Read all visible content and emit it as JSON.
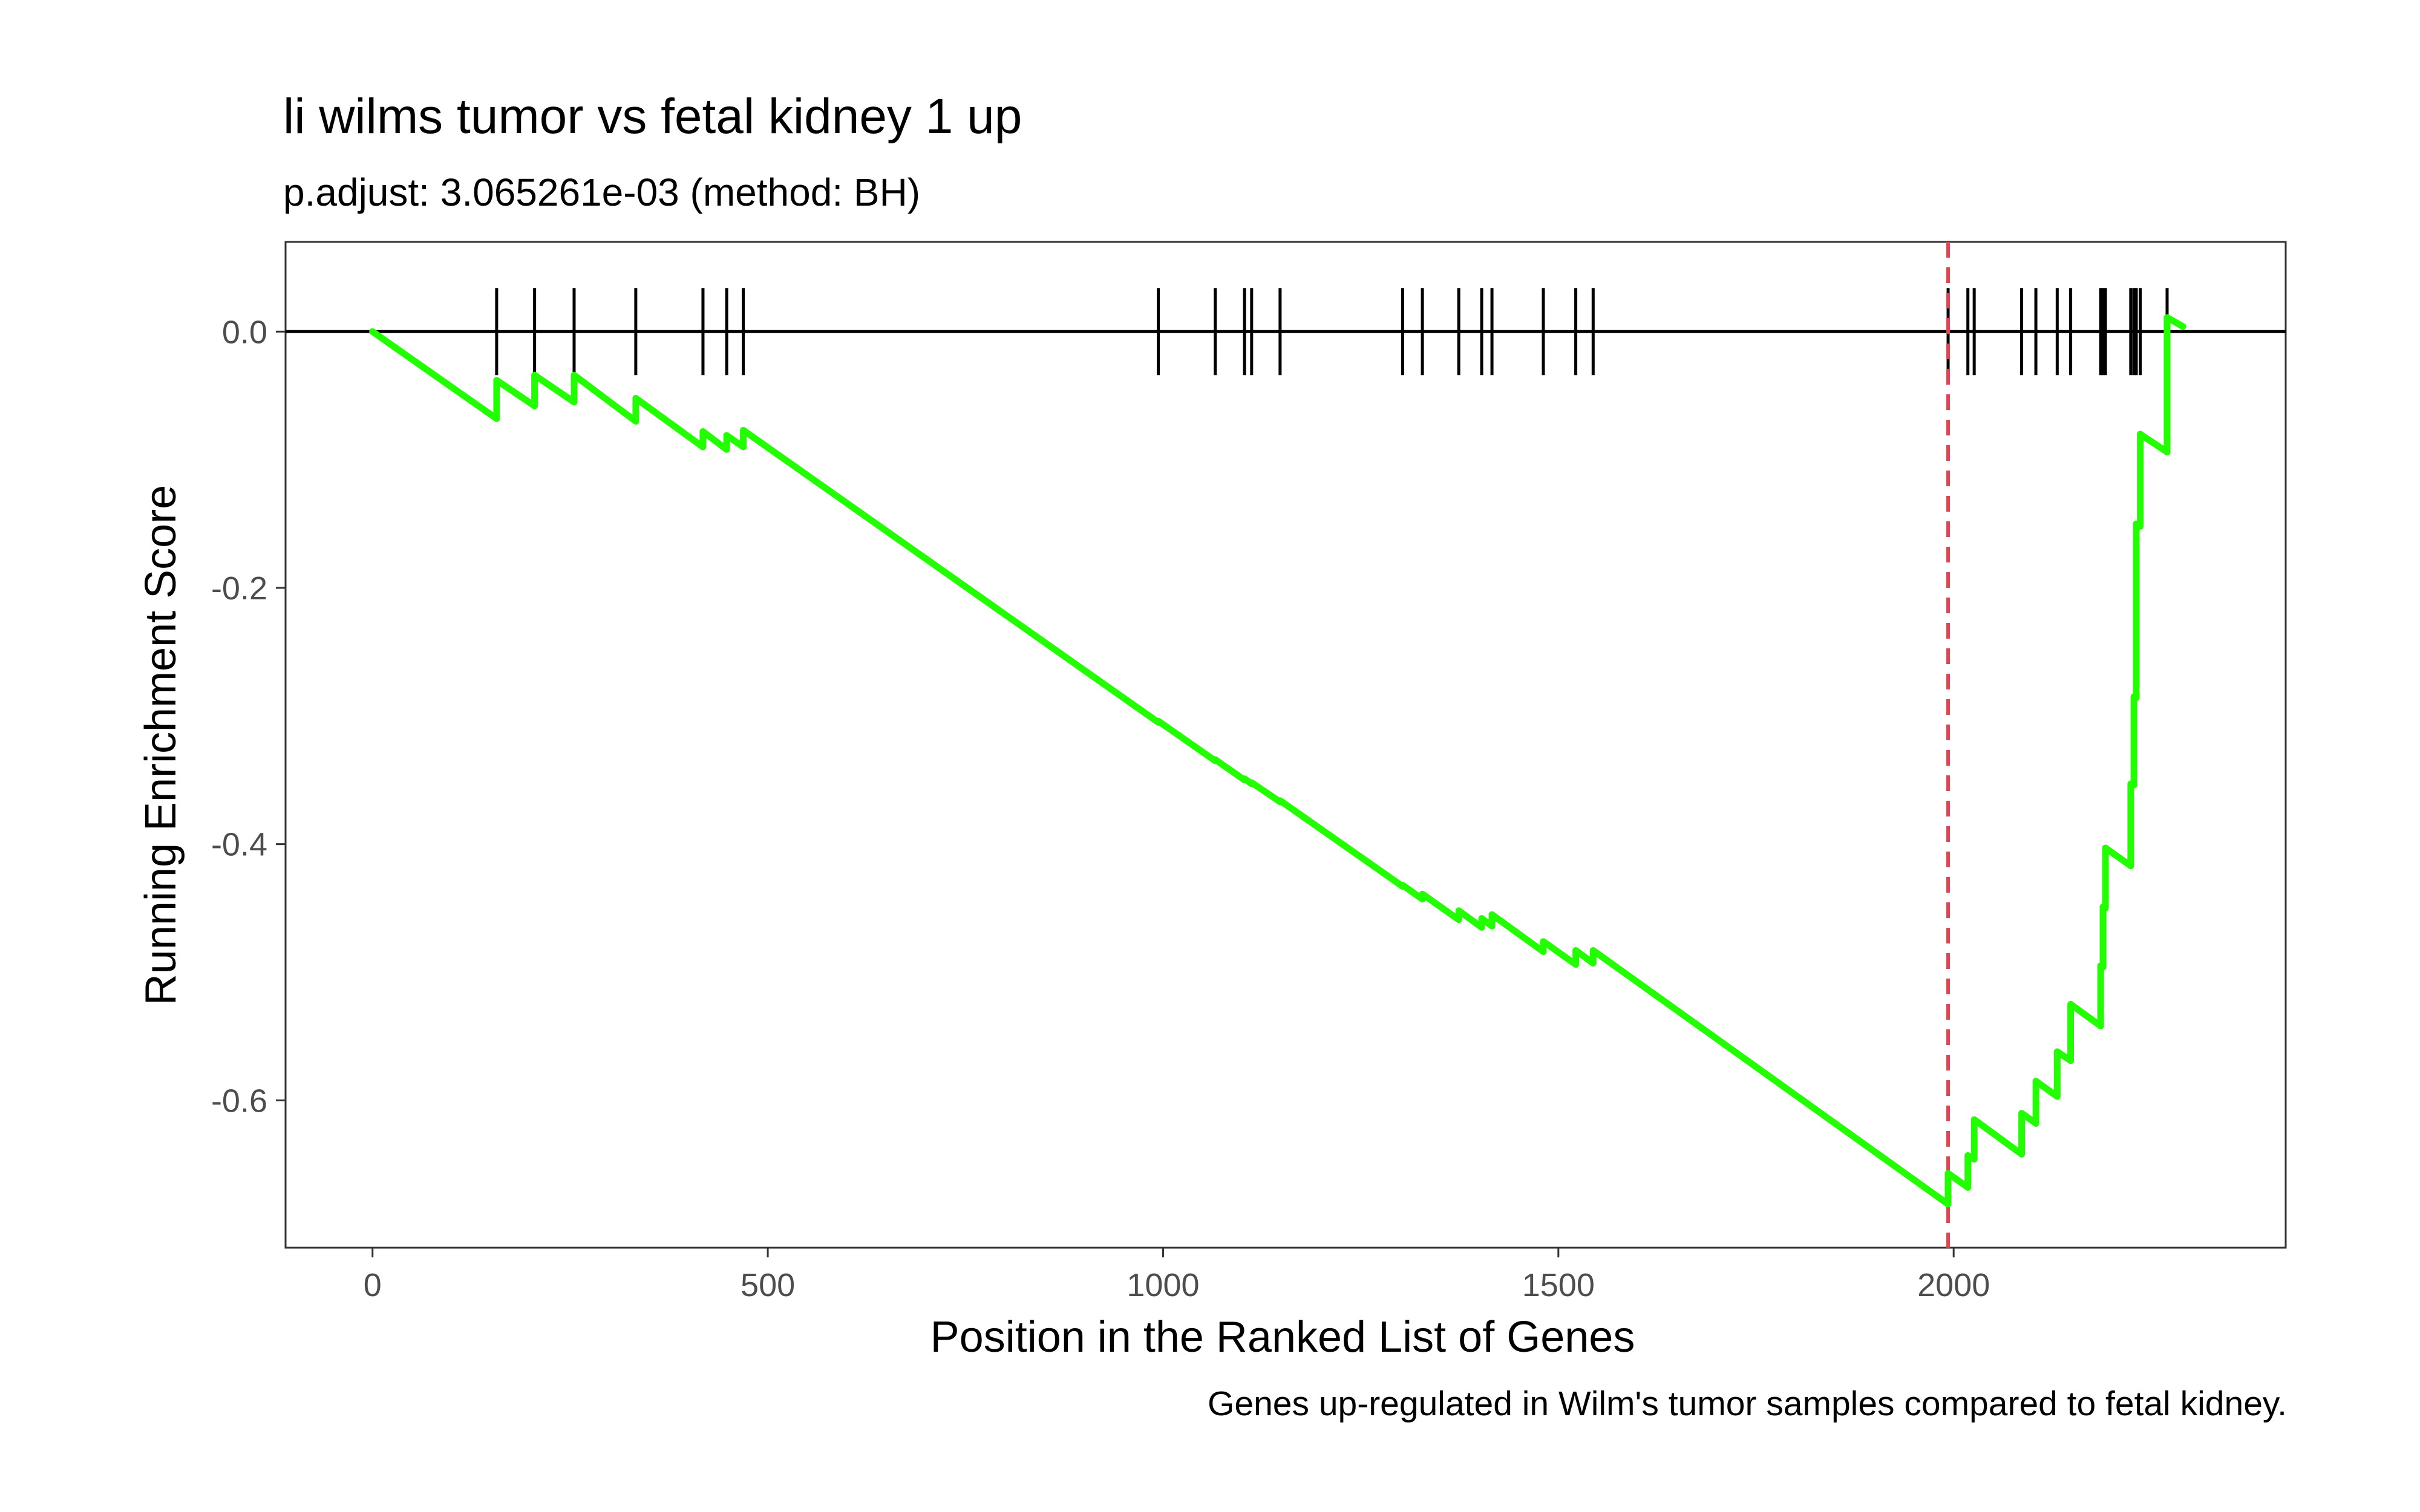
{
  "chart_data": {
    "type": "line",
    "title": "li wilms tumor vs fetal kidney 1 up",
    "subtitle": "p.adjust: 3.065261e-03 (method: BH)",
    "xlabel": "Position in the Ranked List of Genes",
    "ylabel": "Running Enrichment Score",
    "caption": "Genes up-regulated in Wilm's tumor samples compared to fetal kidney.",
    "xlim": [
      -110,
      2420
    ],
    "ylim": [
      -0.715,
      0.07
    ],
    "x_ticks": [
      0,
      500,
      1000,
      1500,
      2000
    ],
    "x_tick_labels": [
      "0",
      "500",
      "1000",
      "1500",
      "2000"
    ],
    "y_ticks": [
      0.0,
      -0.2,
      -0.4,
      -0.6
    ],
    "y_tick_labels": [
      "0.0",
      "-0.2",
      "-0.4",
      "-0.6"
    ],
    "grid": false,
    "colors": {
      "line": "#22ff00",
      "hit_marker": "#000000",
      "zero_line": "#000000",
      "max_deviation_line": "#e8414f"
    },
    "max_deviation_x": 1993,
    "hits": [
      157,
      205,
      255,
      333,
      418,
      448,
      469,
      994,
      1066,
      1103,
      1112,
      1148,
      1303,
      1328,
      1374,
      1403,
      1416,
      1481,
      1522,
      1544,
      1993,
      2018,
      2026,
      2086,
      2104,
      2131,
      2148,
      2186,
      2189,
      2192,
      2224,
      2228,
      2231,
      2236,
      2270
    ],
    "series": [
      {
        "x": [
          0,
          157,
          157,
          205,
          205,
          255,
          255,
          333,
          333,
          418,
          418,
          448,
          448,
          469,
          469,
          994,
          994,
          1066,
          1066,
          1103,
          1103,
          1112,
          1112,
          1148,
          1148,
          1303,
          1303,
          1328,
          1328,
          1374,
          1374,
          1403,
          1403,
          1416,
          1416,
          1481,
          1481,
          1522,
          1522,
          1544,
          1544,
          1993,
          1993,
          2018,
          2018,
          2026,
          2026,
          2086,
          2086,
          2104,
          2104,
          2131,
          2131,
          2148,
          2148,
          2186,
          2186,
          2189,
          2189,
          2192,
          2192,
          2224,
          2224,
          2228,
          2228,
          2231,
          2231,
          2236,
          2236,
          2270,
          2270,
          2290
        ],
        "y": [
          0.0,
          -0.068,
          -0.038,
          -0.058,
          -0.034,
          -0.055,
          -0.034,
          -0.07,
          -0.052,
          -0.09,
          -0.078,
          -0.092,
          -0.081,
          -0.09,
          -0.077,
          -0.305,
          -0.304,
          -0.335,
          -0.334,
          -0.35,
          -0.349,
          -0.353,
          -0.352,
          -0.367,
          -0.366,
          -0.433,
          -0.432,
          -0.443,
          -0.439,
          -0.459,
          -0.452,
          -0.465,
          -0.458,
          -0.464,
          -0.455,
          -0.484,
          -0.476,
          -0.494,
          -0.483,
          -0.493,
          -0.483,
          -0.681,
          -0.657,
          -0.668,
          -0.643,
          -0.646,
          -0.615,
          -0.642,
          -0.61,
          -0.618,
          -0.585,
          -0.597,
          -0.562,
          -0.569,
          -0.525,
          -0.542,
          -0.495,
          -0.496,
          -0.449,
          -0.45,
          -0.403,
          -0.417,
          -0.353,
          -0.354,
          -0.285,
          -0.286,
          -0.15,
          -0.152,
          -0.08,
          -0.094,
          0.011,
          0.004
        ]
      }
    ]
  }
}
